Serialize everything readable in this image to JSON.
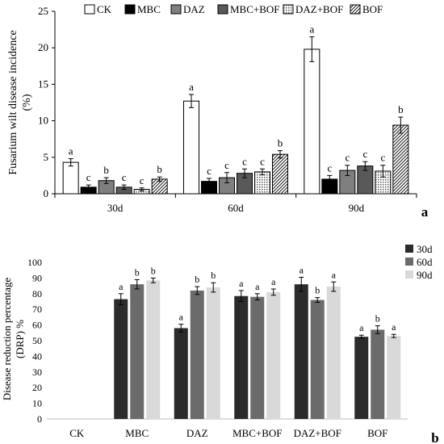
{
  "chart_data": [
    {
      "panel_label": "a",
      "type": "bar",
      "ylabel": "Fusarium wilt disease incidence (%)",
      "ylabel_lines": [
        "Fusarium wilt disease incidence",
        "(%)"
      ],
      "ylim": [
        0,
        25
      ],
      "yticks": [
        0,
        5,
        10,
        15,
        20,
        25
      ],
      "categories": [
        "30d",
        "60d",
        "90d"
      ],
      "legend_position": "top",
      "series": [
        {
          "name": "CK",
          "fill": "white",
          "values": [
            4.3,
            12.7,
            19.8
          ],
          "errors": [
            0.5,
            0.9,
            1.7
          ],
          "letters": [
            "a",
            "a",
            "a"
          ]
        },
        {
          "name": "MBC",
          "fill": "black",
          "values": [
            0.9,
            1.7,
            2.0
          ],
          "errors": [
            0.3,
            0.4,
            0.5
          ],
          "letters": [
            "c",
            "c",
            "c"
          ]
        },
        {
          "name": "DAZ",
          "fill": "gray",
          "values": [
            1.8,
            2.2,
            3.2
          ],
          "errors": [
            0.4,
            0.7,
            0.7
          ],
          "letters": [
            "b",
            "c",
            "c"
          ]
        },
        {
          "name": "MBC+BOF",
          "fill": "darkgray",
          "values": [
            0.9,
            2.8,
            3.8
          ],
          "errors": [
            0.3,
            0.6,
            0.6
          ],
          "letters": [
            "c",
            "c",
            "c"
          ]
        },
        {
          "name": "DAZ+BOF",
          "fill": "dotted",
          "values": [
            0.6,
            3.0,
            3.1
          ],
          "errors": [
            0.2,
            0.4,
            0.8
          ],
          "letters": [
            "c",
            "c",
            "c"
          ]
        },
        {
          "name": "BOF",
          "fill": "hatched",
          "values": [
            2.0,
            5.4,
            9.4
          ],
          "errors": [
            0.3,
            0.5,
            1.1
          ],
          "letters": [
            "b",
            "b",
            "b"
          ]
        }
      ]
    },
    {
      "panel_label": "b",
      "type": "bar",
      "ylabel": "Disease reduction percentage (DRP) %",
      "ylabel_lines": [
        "Disease reduction percentage",
        "(DRP) %"
      ],
      "ylim": [
        0,
        100
      ],
      "yticks": [
        0,
        10,
        20,
        30,
        40,
        50,
        60,
        70,
        80,
        90,
        100
      ],
      "categories": [
        "CK",
        "MBC",
        "DAZ",
        "MBC+BOF",
        "DAZ+BOF",
        "BOF"
      ],
      "legend_position": "top-right",
      "series": [
        {
          "name": "30d",
          "color": "#2b2b2b",
          "values": [
            0,
            76.5,
            58,
            78.5,
            86,
            52.5
          ],
          "errors": [
            0,
            3.5,
            2.5,
            3.5,
            4.5,
            1
          ],
          "letters": [
            "",
            "a",
            "a",
            "a",
            "a",
            "a"
          ]
        },
        {
          "name": "60d",
          "color": "#6b6b6b",
          "values": [
            0,
            86,
            82,
            78,
            76,
            57
          ],
          "errors": [
            0,
            3,
            2.5,
            2,
            1.5,
            2.5
          ],
          "letters": [
            "",
            "b",
            "b",
            "a",
            "b",
            "b"
          ]
        },
        {
          "name": "90d",
          "color": "#d9d9d9",
          "values": [
            0,
            88.5,
            84,
            81,
            84.5,
            53
          ],
          "errors": [
            0,
            1.5,
            3,
            2,
            3,
            1
          ],
          "letters": [
            "",
            "b",
            "b",
            "a",
            "a",
            "a"
          ]
        }
      ]
    }
  ]
}
